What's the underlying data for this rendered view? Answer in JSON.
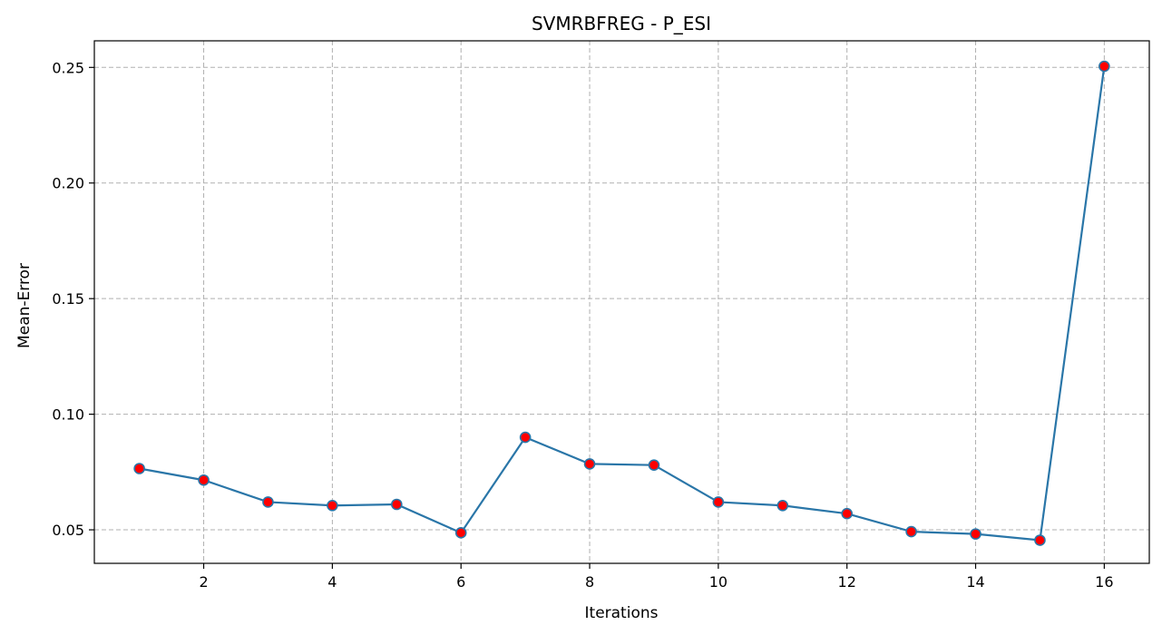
{
  "chart_data": {
    "type": "line",
    "title": "SVMRBFREG - P_ESI",
    "xlabel": "Iterations",
    "ylabel": "Mean-Error",
    "xlim": [
      0.3,
      16.7
    ],
    "ylim": [
      0.0355,
      0.2615
    ],
    "xticks": [
      2,
      4,
      6,
      8,
      10,
      12,
      14,
      16
    ],
    "yticks": [
      0.05,
      0.1,
      0.15,
      0.2,
      0.25
    ],
    "ytick_labels": [
      "0.05",
      "0.10",
      "0.15",
      "0.20",
      "0.25"
    ],
    "grid": true,
    "series": [
      {
        "x": [
          1,
          2,
          3,
          4,
          5,
          6,
          7,
          8,
          9,
          10,
          11,
          12,
          13,
          14,
          15,
          16
        ],
        "y": [
          0.0765,
          0.0715,
          0.062,
          0.0605,
          0.061,
          0.0487,
          0.09,
          0.0785,
          0.078,
          0.062,
          0.0605,
          0.057,
          0.0492,
          0.0482,
          0.0455,
          0.2505
        ],
        "line_color": "#2a76a8",
        "marker_color": "#ff0000"
      }
    ]
  }
}
